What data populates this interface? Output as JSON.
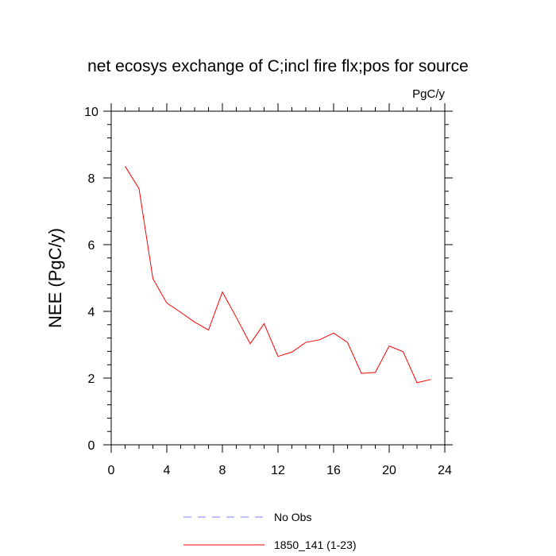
{
  "chart_data": {
    "type": "line",
    "title": "net ecosys exchange of C;incl fire flx;pos for source",
    "units": "PgC/y",
    "xlabel": "",
    "ylabel": "NEE  (PgC/y)",
    "xlim": [
      0,
      24
    ],
    "ylim": [
      0,
      10
    ],
    "x_ticks": [
      0,
      4,
      8,
      12,
      16,
      20,
      24
    ],
    "y_ticks": [
      0,
      2,
      4,
      6,
      8,
      10
    ],
    "grid": false,
    "legend_position": "bottom-center",
    "series": [
      {
        "name": "No Obs",
        "color": "#8080ff",
        "style": "dashed",
        "x": [],
        "y": []
      },
      {
        "name": "1850_141 (1-23)",
        "color": "#ff0000",
        "style": "solid",
        "x": [
          1,
          2,
          3,
          4,
          5,
          6,
          7,
          8,
          9,
          10,
          11,
          12,
          13,
          14,
          15,
          16,
          17,
          18,
          19,
          20,
          21,
          22,
          23
        ],
        "y": [
          8.35,
          7.68,
          4.98,
          4.25,
          3.97,
          3.68,
          3.44,
          4.58,
          3.82,
          3.03,
          3.63,
          2.65,
          2.78,
          3.07,
          3.15,
          3.35,
          3.07,
          2.14,
          2.17,
          2.96,
          2.79,
          1.86,
          1.96
        ]
      }
    ]
  }
}
